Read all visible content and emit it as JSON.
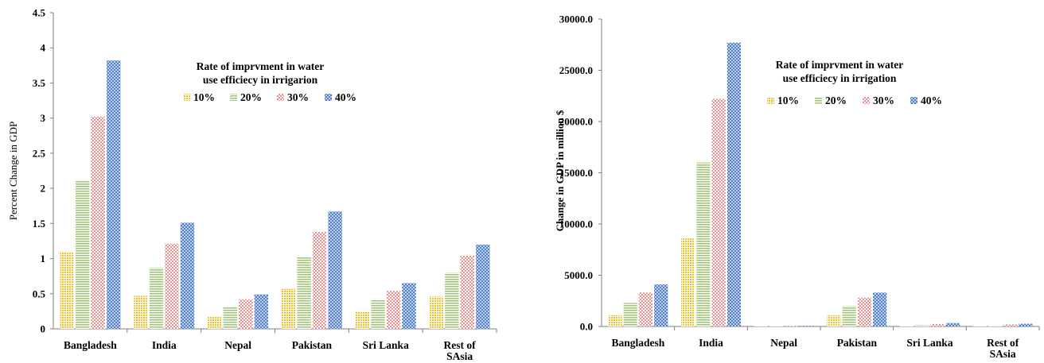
{
  "chart_data": [
    {
      "type": "bar",
      "title": "",
      "xlabel": "",
      "ylabel": "Percent Change in GDP",
      "ylim": [
        0,
        4.5
      ],
      "yticks": [
        "0",
        "0.5",
        "1",
        "1.5",
        "2",
        "2.5",
        "3",
        "3.5",
        "4",
        "4.5"
      ],
      "categories": [
        "Bangladesh",
        "India",
        "Nepal",
        "Pakistan",
        "Sri Lanka",
        "Rest of SAsia"
      ],
      "legend_title": [
        "Rate of imprvment  in water",
        "use efficiecy in irrigarion"
      ],
      "legend_placement": "top-center",
      "grid": false,
      "series": [
        {
          "name": "10%",
          "values": [
            1.1,
            0.47,
            0.18,
            0.57,
            0.25,
            0.46
          ]
        },
        {
          "name": "20%",
          "values": [
            2.12,
            0.87,
            0.32,
            1.02,
            0.42,
            0.8
          ]
        },
        {
          "name": "30%",
          "values": [
            3.02,
            1.21,
            0.42,
            1.38,
            0.54,
            1.04
          ]
        },
        {
          "name": "40%",
          "values": [
            3.82,
            1.51,
            0.49,
            1.67,
            0.65,
            1.2
          ]
        }
      ]
    },
    {
      "type": "bar",
      "title": "",
      "xlabel": "",
      "ylabel": "Change in GDP in million $",
      "ylim": [
        0,
        30000
      ],
      "yticks": [
        "0.0",
        "5000.0",
        "10000.0",
        "15000.0",
        "20000.0",
        "25000.0",
        "30000.0"
      ],
      "categories": [
        "Bangladesh",
        "India",
        "Nepal",
        "Pakistan",
        "Sri Lanka",
        "Rest of SAsia"
      ],
      "legend_title": [
        "Rate of imprvment  in water",
        "use efficiecy in irrigation"
      ],
      "legend_placement": "top-center",
      "grid": false,
      "series": [
        {
          "name": "10%",
          "values": [
            1100,
            8600,
            10,
            1100,
            80,
            70
          ]
        },
        {
          "name": "20%",
          "values": [
            2300,
            16000,
            20,
            2000,
            150,
            120
          ]
        },
        {
          "name": "30%",
          "values": [
            3300,
            22200,
            30,
            2800,
            240,
            200
          ]
        },
        {
          "name": "40%",
          "values": [
            4100,
            27700,
            40,
            3300,
            330,
            270
          ]
        }
      ]
    }
  ],
  "colors": {
    "s10": "#f7c530",
    "s20": "#a8c97f",
    "s30": "#e88787",
    "s40": "#5b86c6"
  }
}
